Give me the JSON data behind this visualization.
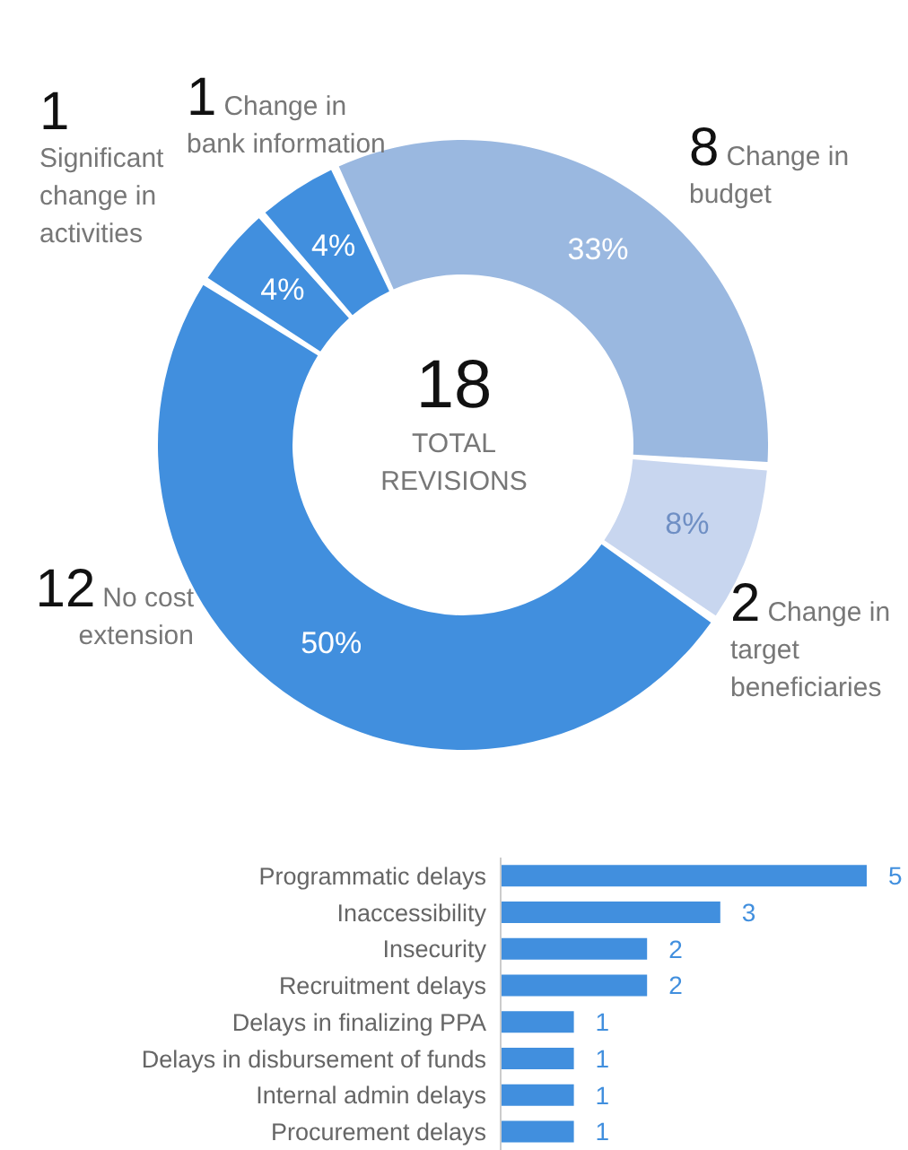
{
  "chart_data": [
    {
      "type": "donut",
      "categories": [
        "Change in budget",
        "Change in target beneficiaries",
        "No cost extension",
        "Significant change in activities",
        "Change in bank information"
      ],
      "values": [
        33.3,
        8.3,
        50,
        4.2,
        4.2
      ],
      "colors": [
        "#9ab8e0",
        "#c8d6ef",
        "#418fde",
        "#418fde",
        "#418fde"
      ],
      "value_labels": [
        "33%",
        "8%",
        "50%",
        "4%",
        "4%"
      ],
      "annotations": [
        "18",
        "TOTAL REVISIONS",
        {
          "text": "8",
          "x": "Change in budget"
        },
        {
          "text": "2",
          "x": "Change in target beneficiaries"
        },
        {
          "text": "12",
          "x": "No cost extension"
        },
        {
          "text": "1",
          "x": "Significant change in activities"
        },
        {
          "text": "1",
          "x": "Change in bank information"
        }
      ],
      "legend": false
    },
    {
      "type": "bar",
      "orientation": "horizontal",
      "categories": [
        "Programmatic delays",
        "Inaccessibility",
        "Insecurity",
        "Recruitment delays",
        "Delays in finalizing PPA",
        "Delays in disbursement of funds",
        "Internal admin delays",
        "Procurement delays"
      ],
      "values": [
        5,
        3,
        2,
        2,
        1,
        1,
        1,
        1
      ],
      "color": "#418fde",
      "data_labels": true,
      "tick_labels": "y",
      "legend": false
    }
  ]
}
